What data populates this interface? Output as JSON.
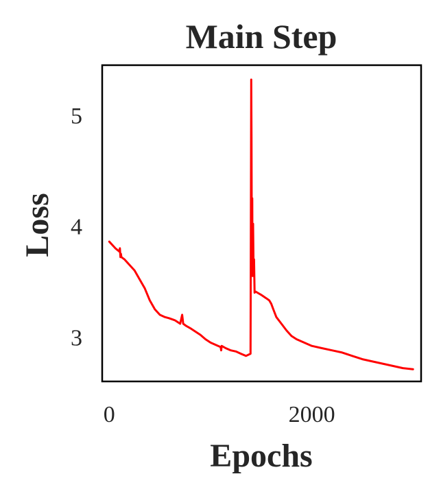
{
  "chart_data": {
    "type": "line",
    "title": "Main Step",
    "xlabel": "Epochs",
    "ylabel": "Loss",
    "xlim": [
      -70,
      3080
    ],
    "ylim": [
      2.6,
      5.45
    ],
    "xticks": [
      {
        "value": 0,
        "label": "0"
      },
      {
        "value": 2000,
        "label": "2000"
      }
    ],
    "yticks": [
      {
        "value": 3,
        "label": "3"
      },
      {
        "value": 4,
        "label": "4"
      },
      {
        "value": 5,
        "label": "5"
      }
    ],
    "grid": false,
    "legend": "none",
    "series": [
      {
        "color": "#ff0000",
        "x": [
          0,
          60,
          100,
          105,
          110,
          115,
          120,
          150,
          200,
          250,
          300,
          350,
          400,
          450,
          500,
          550,
          590,
          650,
          700,
          720,
          725,
          730,
          760,
          800,
          850,
          900,
          950,
          1000,
          1050,
          1100,
          1105,
          1110,
          1150,
          1200,
          1250,
          1300,
          1350,
          1395,
          1400,
          1402,
          1405,
          1408,
          1412,
          1415,
          1420,
          1425,
          1430,
          1435,
          1445,
          1500,
          1550,
          1580,
          1600,
          1620,
          1650,
          1700,
          1750,
          1800,
          1850,
          1900,
          1950,
          2000,
          2100,
          2200,
          2300,
          2400,
          2500,
          2600,
          2700,
          2800,
          2900,
          3000
        ],
        "y": [
          3.86,
          3.8,
          3.77,
          3.8,
          3.72,
          3.75,
          3.72,
          3.7,
          3.65,
          3.6,
          3.52,
          3.44,
          3.33,
          3.25,
          3.2,
          3.18,
          3.17,
          3.15,
          3.12,
          3.2,
          3.16,
          3.12,
          3.1,
          3.08,
          3.05,
          3.02,
          2.98,
          2.95,
          2.93,
          2.91,
          2.88,
          2.92,
          2.9,
          2.88,
          2.87,
          2.85,
          2.83,
          2.85,
          4.5,
          5.32,
          4.8,
          3.7,
          4.25,
          3.55,
          4.02,
          3.62,
          3.7,
          3.4,
          3.41,
          3.38,
          3.35,
          3.33,
          3.3,
          3.25,
          3.18,
          3.12,
          3.06,
          3.01,
          2.98,
          2.96,
          2.94,
          2.92,
          2.9,
          2.88,
          2.86,
          2.83,
          2.8,
          2.78,
          2.76,
          2.74,
          2.72,
          2.71
        ]
      }
    ]
  }
}
